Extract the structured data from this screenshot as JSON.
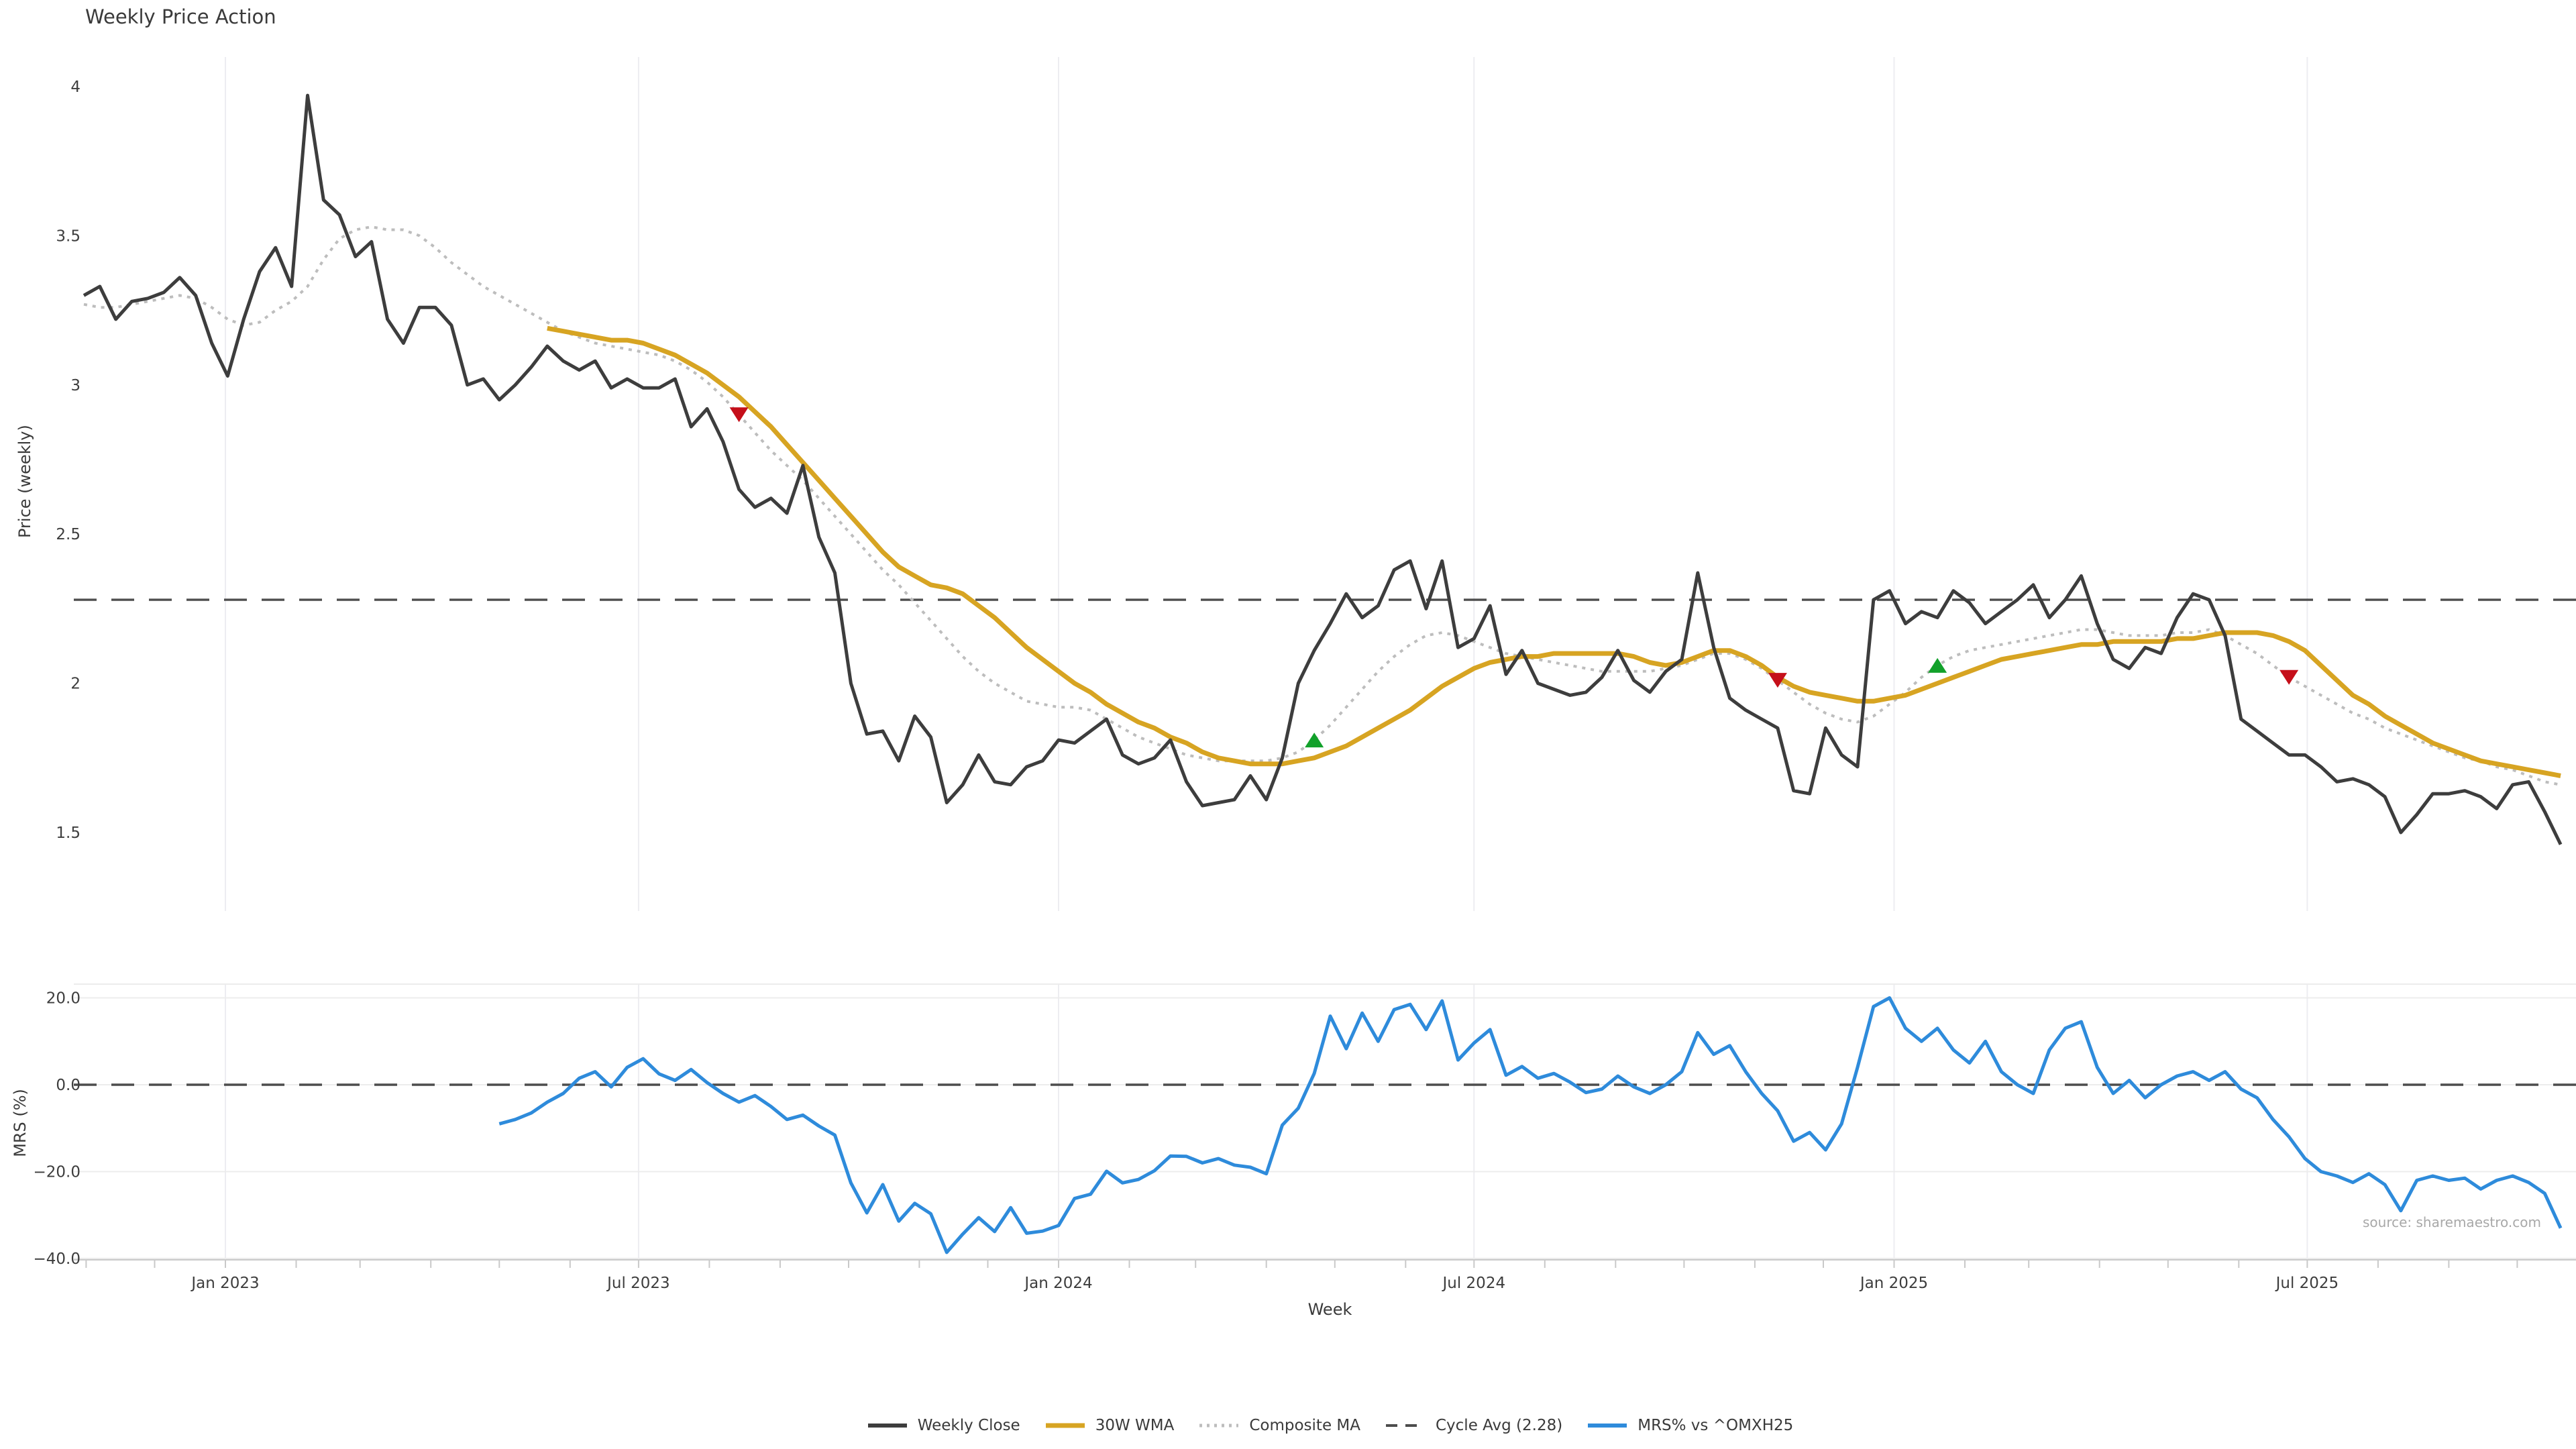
{
  "title": "Weekly Price Action",
  "source": "source: sharemaestro.com",
  "colors": {
    "weekly_close": "#3d3d3d",
    "wma": "#d7a422",
    "composite": "#bdbdbd",
    "cycle_avg": "#4d4d4d",
    "mrs": "#2e8bdb",
    "marker_down": "#c50f1a",
    "marker_up": "#12a12b",
    "grid": "#ededf1",
    "hgrid": "#ececec",
    "axis": "#c9c9c9",
    "tick_text": "#3d3d3d"
  },
  "legend": {
    "items": [
      {
        "label": "Weekly Close",
        "color": "#3d3d3d",
        "dash": "",
        "width": 6
      },
      {
        "label": "30W WMA",
        "color": "#d7a422",
        "dash": "",
        "width": 7
      },
      {
        "label": "Composite MA",
        "color": "#bdbdbd",
        "dash": "4 7",
        "width": 5
      },
      {
        "label": "Cycle Avg (2.28)",
        "color": "#4d4d4d",
        "dash": "17 12",
        "width": 4
      },
      {
        "label": "MRS% vs ^OMXH25",
        "color": "#2e8bdb",
        "dash": "",
        "width": 6
      }
    ]
  },
  "chart_data": {
    "type": "line",
    "title": "Weekly Price Action",
    "xlabel": "Week",
    "x_start_date": "2022-10-31",
    "x_step_days": 7,
    "xticks": [
      {
        "label": "Jan 2023",
        "date": "2023-01-01"
      },
      {
        "label": "Jul 2023",
        "date": "2023-07-01"
      },
      {
        "label": "Jan 2024",
        "date": "2024-01-01"
      },
      {
        "label": "Jul 2024",
        "date": "2024-07-01"
      },
      {
        "label": "Jan 2025",
        "date": "2025-01-01"
      },
      {
        "label": "Jul 2025",
        "date": "2025-07-01"
      }
    ],
    "panels": [
      {
        "name": "price",
        "ylabel": "Price (weekly)",
        "ylim": [
          1.22,
          4.1
        ],
        "yticks": [
          {
            "label": "4",
            "v": 4.0
          },
          {
            "label": "3.5",
            "v": 3.5
          },
          {
            "label": "3",
            "v": 3.0
          },
          {
            "label": "2.5",
            "v": 2.5
          },
          {
            "label": "2",
            "v": 2.0
          },
          {
            "label": "1.5",
            "v": 1.5
          }
        ],
        "hlines": [
          {
            "name": "Cycle Avg (2.28)",
            "v": 2.28,
            "style": "dashed",
            "color": "#4d4d4d"
          }
        ],
        "series": [
          {
            "name": "Weekly Close",
            "color": "#3d3d3d",
            "style": "solid",
            "width": 5,
            "start": 0,
            "values": [
              3.3,
              3.33,
              3.22,
              3.28,
              3.29,
              3.31,
              3.36,
              3.3,
              3.14,
              3.03,
              3.22,
              3.38,
              3.46,
              3.33,
              3.97,
              3.62,
              3.57,
              3.43,
              3.48,
              3.22,
              3.14,
              3.26,
              3.26,
              3.2,
              3.0,
              3.02,
              2.95,
              3.0,
              3.06,
              3.13,
              3.08,
              3.05,
              3.08,
              2.99,
              3.02,
              2.99,
              2.99,
              3.02,
              2.86,
              2.92,
              2.81,
              2.65,
              2.59,
              2.62,
              2.57,
              2.73,
              2.49,
              2.37,
              2.0,
              1.83,
              1.84,
              1.74,
              1.89,
              1.82,
              1.6,
              1.66,
              1.76,
              1.67,
              1.66,
              1.72,
              1.74,
              1.81,
              1.8,
              1.84,
              1.88,
              1.76,
              1.73,
              1.75,
              1.81,
              1.67,
              1.59,
              1.6,
              1.61,
              1.69,
              1.61,
              1.75,
              2.0,
              2.11,
              2.2,
              2.3,
              2.22,
              2.26,
              2.38,
              2.41,
              2.25,
              2.41,
              2.12,
              2.15,
              2.26,
              2.03,
              2.11,
              2.0,
              1.98,
              1.96,
              1.97,
              2.02,
              2.11,
              2.01,
              1.97,
              2.04,
              2.08,
              2.37,
              2.12,
              1.95,
              1.91,
              1.88,
              1.85,
              1.64,
              1.63,
              1.85,
              1.76,
              1.72,
              2.28,
              2.31,
              2.2,
              2.24,
              2.22,
              2.31,
              2.27,
              2.2,
              2.24,
              2.28,
              2.33,
              2.22,
              2.28,
              2.36,
              2.2,
              2.08,
              2.05,
              2.12,
              2.1,
              2.22,
              2.3,
              2.28,
              2.16,
              1.88,
              1.84,
              1.8,
              1.76,
              1.76,
              1.72,
              1.67,
              1.68,
              1.66,
              1.62,
              1.5,
              1.56,
              1.63,
              1.63,
              1.64,
              1.62,
              1.58,
              1.66,
              1.67,
              1.57,
              1.46
            ]
          },
          {
            "name": "30W WMA",
            "color": "#d7a422",
            "style": "solid",
            "width": 7,
            "start": 29,
            "values": [
              3.19,
              3.18,
              3.17,
              3.16,
              3.15,
              3.15,
              3.14,
              3.12,
              3.1,
              3.07,
              3.04,
              3.0,
              2.96,
              2.91,
              2.86,
              2.8,
              2.74,
              2.68,
              2.62,
              2.56,
              2.5,
              2.44,
              2.39,
              2.36,
              2.33,
              2.32,
              2.3,
              2.26,
              2.22,
              2.17,
              2.12,
              2.08,
              2.04,
              2.0,
              1.97,
              1.93,
              1.9,
              1.87,
              1.85,
              1.82,
              1.8,
              1.77,
              1.75,
              1.74,
              1.73,
              1.73,
              1.73,
              1.74,
              1.75,
              1.77,
              1.79,
              1.82,
              1.85,
              1.88,
              1.91,
              1.95,
              1.99,
              2.02,
              2.05,
              2.07,
              2.08,
              2.09,
              2.09,
              2.1,
              2.1,
              2.1,
              2.1,
              2.1,
              2.09,
              2.07,
              2.06,
              2.07,
              2.09,
              2.11,
              2.11,
              2.09,
              2.06,
              2.02,
              1.99,
              1.97,
              1.96,
              1.95,
              1.94,
              1.94,
              1.95,
              1.96,
              1.98,
              2.0,
              2.02,
              2.04,
              2.06,
              2.08,
              2.09,
              2.1,
              2.11,
              2.12,
              2.13,
              2.13,
              2.14,
              2.14,
              2.14,
              2.14,
              2.15,
              2.15,
              2.16,
              2.17,
              2.17,
              2.17,
              2.16,
              2.14,
              2.11,
              2.06,
              2.01,
              1.96,
              1.93,
              1.89,
              1.86,
              1.83,
              1.8,
              1.78,
              1.76,
              1.74,
              1.73,
              1.72,
              1.71,
              1.7,
              1.69
            ]
          },
          {
            "name": "Composite MA",
            "color": "#bdbdbd",
            "style": "dotted",
            "width": 4,
            "start": 0,
            "values": [
              3.27,
              3.26,
              3.26,
              3.27,
              3.28,
              3.29,
              3.3,
              3.29,
              3.26,
              3.22,
              3.2,
              3.21,
              3.25,
              3.28,
              3.33,
              3.42,
              3.49,
              3.52,
              3.53,
              3.52,
              3.52,
              3.5,
              3.46,
              3.41,
              3.37,
              3.33,
              3.3,
              3.27,
              3.24,
              3.21,
              3.18,
              3.16,
              3.14,
              3.13,
              3.12,
              3.11,
              3.1,
              3.08,
              3.05,
              3.01,
              2.96,
              2.9,
              2.84,
              2.78,
              2.73,
              2.68,
              2.62,
              2.56,
              2.5,
              2.44,
              2.38,
              2.33,
              2.27,
              2.21,
              2.15,
              2.09,
              2.04,
              2.0,
              1.97,
              1.94,
              1.93,
              1.92,
              1.92,
              1.91,
              1.88,
              1.85,
              1.82,
              1.8,
              1.78,
              1.76,
              1.75,
              1.74,
              1.74,
              1.74,
              1.74,
              1.75,
              1.77,
              1.81,
              1.86,
              1.92,
              1.98,
              2.04,
              2.09,
              2.13,
              2.16,
              2.17,
              2.16,
              2.14,
              2.12,
              2.1,
              2.09,
              2.08,
              2.07,
              2.06,
              2.05,
              2.04,
              2.04,
              2.04,
              2.04,
              2.05,
              2.06,
              2.08,
              2.1,
              2.1,
              2.08,
              2.05,
              2.01,
              1.97,
              1.93,
              1.9,
              1.88,
              1.87,
              1.89,
              1.93,
              1.97,
              2.02,
              2.06,
              2.09,
              2.11,
              2.12,
              2.13,
              2.14,
              2.15,
              2.16,
              2.17,
              2.18,
              2.18,
              2.17,
              2.16,
              2.16,
              2.16,
              2.17,
              2.17,
              2.18,
              2.16,
              2.13,
              2.1,
              2.06,
              2.02,
              1.99,
              1.96,
              1.93,
              1.9,
              1.88,
              1.85,
              1.83,
              1.81,
              1.79,
              1.77,
              1.75,
              1.74,
              1.72,
              1.71,
              1.69,
              1.67,
              1.66
            ]
          }
        ],
        "markers": [
          {
            "shape": "triangle-down",
            "color": "#c50f1a",
            "t": 41,
            "value": 2.9
          },
          {
            "shape": "triangle-up",
            "color": "#12a12b",
            "t": 77,
            "value": 1.81
          },
          {
            "shape": "triangle-down",
            "color": "#c50f1a",
            "t": 106,
            "value": 2.01
          },
          {
            "shape": "triangle-up",
            "color": "#12a12b",
            "t": 116,
            "value": 2.06
          },
          {
            "shape": "triangle-down",
            "color": "#c50f1a",
            "t": 138,
            "value": 2.02
          }
        ]
      },
      {
        "name": "mrs",
        "ylabel": "MRS (%)",
        "ylim": [
          -42,
          23
        ],
        "yticks": [
          {
            "label": "20.0",
            "v": 20
          },
          {
            "label": "0.0",
            "v": 0
          },
          {
            "label": "−20.0",
            "v": -20
          },
          {
            "label": "−40.0",
            "v": -40
          }
        ],
        "hlines": [
          {
            "name": "Zero line",
            "v": 0,
            "style": "dashed",
            "color": "#4d4d4d"
          }
        ],
        "series": [
          {
            "name": "MRS% vs ^OMXH25",
            "color": "#2e8bdb",
            "style": "solid",
            "width": 5,
            "start": 26,
            "values": [
              -9,
              -8,
              -6.5,
              -4,
              -2,
              1.5,
              3,
              -0.5,
              4,
              6,
              2.5,
              1,
              3.5,
              0.5,
              -2,
              -4,
              -2.5,
              -5,
              -8,
              -7,
              -9.5,
              -11.6,
              -22.6,
              -29.5,
              -23,
              -31.4,
              -27.3,
              -29.7,
              -38.6,
              -34.4,
              -30.6,
              -33.8,
              -28.3,
              -34.2,
              -33.7,
              -32.4,
              -26.2,
              -25.2,
              -19.9,
              -22.6,
              -21.8,
              -19.8,
              -16.4,
              -16.5,
              -18,
              -17,
              -18.5,
              -19,
              -20.5,
              -9.3,
              -5.4,
              2.6,
              15.8,
              8.3,
              16.5,
              10,
              17.3,
              18.5,
              12.7,
              19.3,
              5.7,
              9.6,
              12.7,
              2.2,
              4.2,
              1.5,
              2.6,
              0.6,
              -1.8,
              -1,
              2,
              -0.5,
              -2,
              0,
              3,
              12,
              7,
              9,
              3,
              -2,
              -6,
              -13,
              -11,
              -15,
              -9,
              4,
              18,
              20,
              13,
              10,
              13,
              8,
              5,
              10,
              3,
              0,
              -2,
              8,
              13,
              14.5,
              4,
              -2,
              1,
              -3,
              0,
              2,
              3,
              1,
              3,
              -1,
              -3,
              -8,
              -12,
              -17,
              -20,
              -21,
              -22.5,
              -20.5,
              -23,
              -29,
              -22,
              -21,
              -22,
              -21.5,
              -24,
              -22,
              -21,
              -22.5,
              -25,
              -33
            ]
          }
        ]
      }
    ]
  }
}
